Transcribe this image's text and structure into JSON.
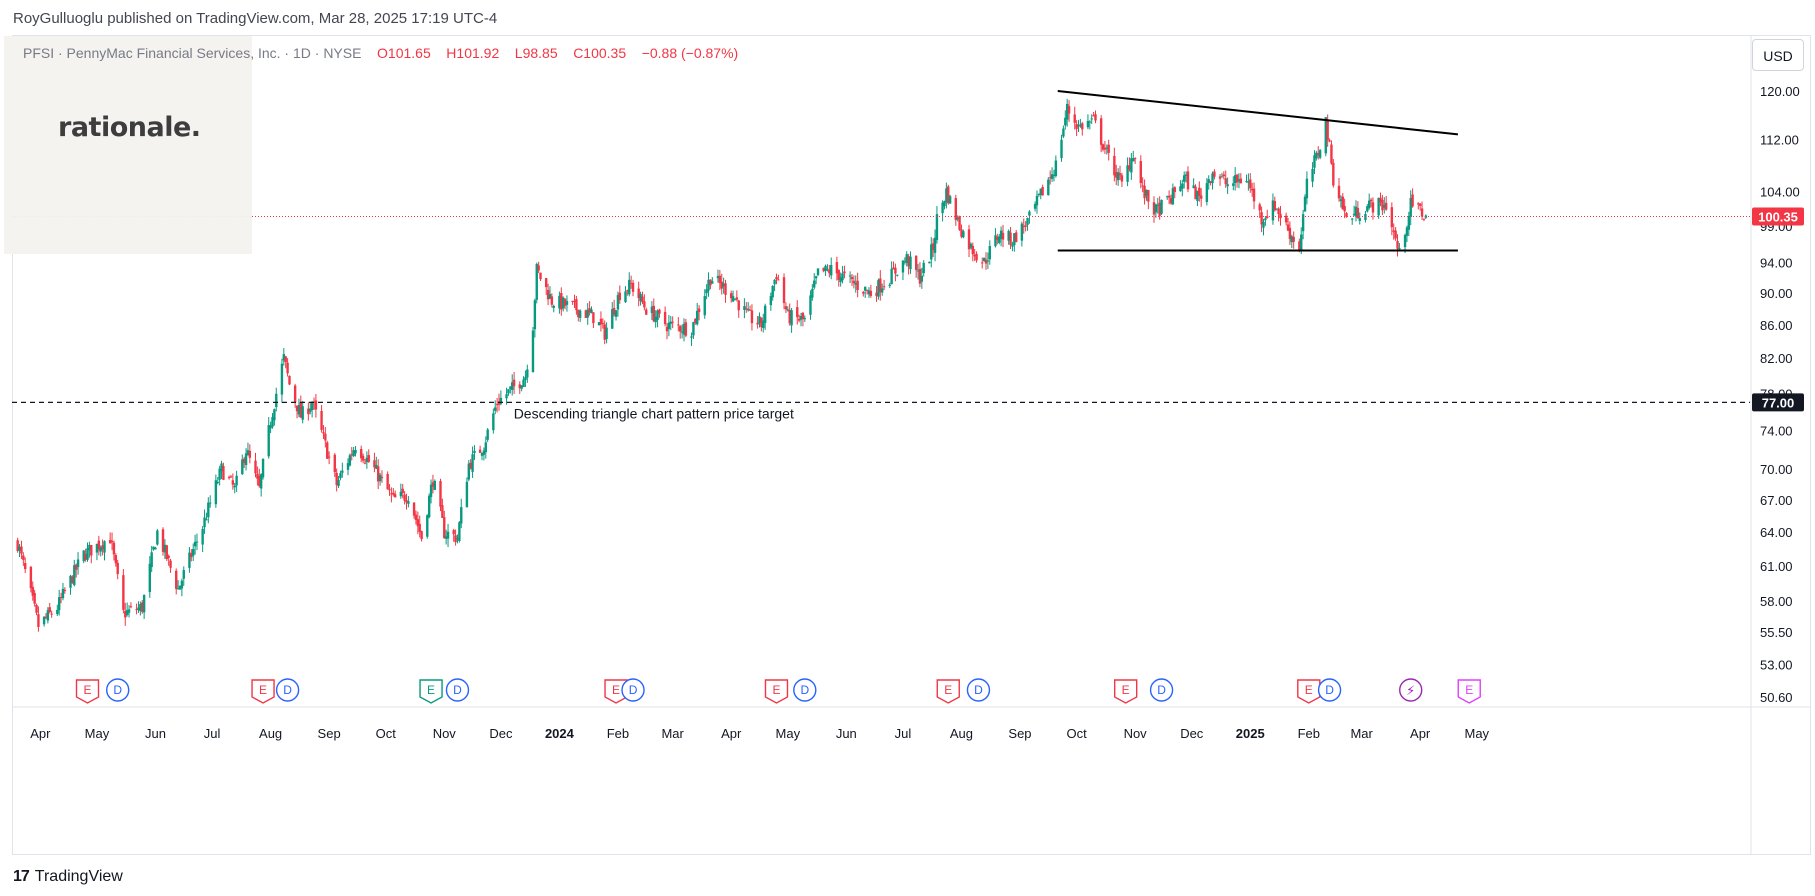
{
  "header": {
    "published": "RoyGulluoglu published on TradingView.com, Mar 28, 2025 17:19 UTC-4"
  },
  "legend": {
    "symbol": "PFSI · PennyMac Financial Services, Inc. · 1D · NYSE",
    "open": "O101.65",
    "high": "H101.92",
    "low": "L98.85",
    "close": "C100.35",
    "change": "−0.88 (−0.87%)"
  },
  "logo": {
    "text": "rationale."
  },
  "currency": "USD",
  "footer": {
    "brand": "TradingView"
  },
  "colors": {
    "up": "#089981",
    "down": "#f23645",
    "earnings": "#f23645",
    "dividend": "#2962ff",
    "split_flash": "#9c27b0"
  },
  "chart_data": {
    "type": "candlestick",
    "y_axis": {
      "ticks": [
        "120.00",
        "112.00",
        "104.00",
        "99.00",
        "94.00",
        "90.00",
        "86.00",
        "82.00",
        "78.00",
        "74.00",
        "70.00",
        "67.00",
        "64.00",
        "61.00",
        "58.00",
        "55.50",
        "53.00",
        "50.60"
      ],
      "tick_values": [
        120,
        112,
        104,
        99,
        94,
        90,
        86,
        82,
        78,
        74,
        70,
        67,
        64,
        61,
        58,
        55.5,
        53,
        50.6
      ],
      "scale": "log",
      "last_price_label": "100.35",
      "target_label": "77.00"
    },
    "x_axis": {
      "labels": [
        "Apr",
        "May",
        "Jun",
        "Jul",
        "Aug",
        "Sep",
        "Oct",
        "Nov",
        "Dec",
        "2024",
        "Feb",
        "Mar",
        "Apr",
        "May",
        "Jun",
        "Jul",
        "Aug",
        "Sep",
        "Oct",
        "Nov",
        "Dec",
        "2025",
        "Feb",
        "Mar",
        "Apr",
        "May"
      ],
      "bold": [
        "2024",
        "2025"
      ]
    },
    "price_path": [
      [
        "2023-03-20",
        63
      ],
      [
        "2023-03-31",
        56
      ],
      [
        "2023-04-10",
        57.5
      ],
      [
        "2023-04-24",
        62
      ],
      [
        "2023-05-08",
        63.5
      ],
      [
        "2023-05-15",
        57
      ],
      [
        "2023-05-25",
        57.5
      ],
      [
        "2023-06-02",
        64
      ],
      [
        "2023-06-13",
        59
      ],
      [
        "2023-06-26",
        64.5
      ],
      [
        "2023-07-06",
        70
      ],
      [
        "2023-07-13",
        68
      ],
      [
        "2023-07-19",
        72
      ],
      [
        "2023-07-26",
        68
      ],
      [
        "2023-08-01",
        75
      ],
      [
        "2023-08-08",
        82
      ],
      [
        "2023-08-11",
        79
      ],
      [
        "2023-08-17",
        75.5
      ],
      [
        "2023-08-23",
        77
      ],
      [
        "2023-09-05",
        68.5
      ],
      [
        "2023-09-15",
        72.5
      ],
      [
        "2023-09-25",
        70
      ],
      [
        "2023-10-05",
        67
      ],
      [
        "2023-10-13",
        67.5
      ],
      [
        "2023-10-20",
        63.5
      ],
      [
        "2023-10-26",
        69
      ],
      [
        "2023-11-01",
        64
      ],
      [
        "2023-11-08",
        63.5
      ],
      [
        "2023-11-14",
        70.5
      ],
      [
        "2023-11-22",
        72.5
      ],
      [
        "2023-11-29",
        77
      ],
      [
        "2023-12-07",
        78.5
      ],
      [
        "2023-12-14",
        80
      ],
      [
        "2023-12-18",
        86
      ],
      [
        "2023-12-20",
        93
      ],
      [
        "2023-12-28",
        89
      ],
      [
        "2024-01-10",
        88
      ],
      [
        "2024-01-19",
        87
      ],
      [
        "2024-01-25",
        85
      ],
      [
        "2024-02-02",
        90
      ],
      [
        "2024-02-08",
        91
      ],
      [
        "2024-02-16",
        88
      ],
      [
        "2024-02-27",
        86
      ],
      [
        "2024-03-11",
        85.5
      ],
      [
        "2024-03-21",
        92
      ],
      [
        "2024-04-01",
        90
      ],
      [
        "2024-04-10",
        87
      ],
      [
        "2024-04-17",
        86
      ],
      [
        "2024-04-25",
        92.5
      ],
      [
        "2024-05-01",
        87
      ],
      [
        "2024-05-10",
        86.5
      ],
      [
        "2024-05-17",
        92.5
      ],
      [
        "2024-05-24",
        93
      ],
      [
        "2024-06-03",
        91.5
      ],
      [
        "2024-06-14",
        90
      ],
      [
        "2024-06-24",
        92
      ],
      [
        "2024-07-03",
        94.5
      ],
      [
        "2024-07-10",
        92
      ],
      [
        "2024-07-17",
        96
      ],
      [
        "2024-07-19",
        100
      ],
      [
        "2024-07-24",
        104
      ],
      [
        "2024-07-31",
        99
      ],
      [
        "2024-08-06",
        96
      ],
      [
        "2024-08-13",
        94
      ],
      [
        "2024-08-21",
        98
      ],
      [
        "2024-08-28",
        97
      ],
      [
        "2024-09-06",
        100
      ],
      [
        "2024-09-13",
        104
      ],
      [
        "2024-09-20",
        108
      ],
      [
        "2024-09-26",
        117
      ],
      [
        "2024-10-02",
        114
      ],
      [
        "2024-10-10",
        115
      ],
      [
        "2024-10-18",
        109
      ],
      [
        "2024-10-25",
        105
      ],
      [
        "2024-10-31",
        110
      ],
      [
        "2024-11-05",
        104
      ],
      [
        "2024-11-12",
        101
      ],
      [
        "2024-11-20",
        103
      ],
      [
        "2024-11-27",
        106
      ],
      [
        "2024-12-05",
        103
      ],
      [
        "2024-12-12",
        107
      ],
      [
        "2024-12-20",
        105
      ],
      [
        "2024-12-30",
        106
      ],
      [
        "2025-01-07",
        100
      ],
      [
        "2025-01-14",
        102
      ],
      [
        "2025-01-22",
        98
      ],
      [
        "2025-01-27",
        96
      ],
      [
        "2025-01-31",
        105
      ],
      [
        "2025-02-06",
        110
      ],
      [
        "2025-02-10",
        115
      ],
      [
        "2025-02-14",
        106
      ],
      [
        "2025-02-21",
        100
      ],
      [
        "2025-02-27",
        101
      ],
      [
        "2025-03-06",
        102
      ],
      [
        "2025-03-14",
        102
      ],
      [
        "2025-03-19",
        97
      ],
      [
        "2025-03-21",
        95
      ],
      [
        "2025-03-27",
        102
      ],
      [
        "2025-03-31",
        101.5
      ],
      [
        "2025-04-04",
        100.35
      ]
    ],
    "trendlines": [
      {
        "from": [
          "2024-09-21",
          120
        ],
        "to": [
          "2025-04-21",
          112.8
        ]
      },
      {
        "from": [
          "2024-09-21",
          95.6
        ],
        "to": [
          "2025-04-21",
          95.6
        ]
      }
    ],
    "target_line": {
      "price": 77,
      "label": "Descending triangle chart pattern price target"
    },
    "events": [
      {
        "date": "2023-04-26",
        "type": "E"
      },
      {
        "date": "2023-05-12",
        "type": "D"
      },
      {
        "date": "2023-07-28",
        "type": "E"
      },
      {
        "date": "2023-08-10",
        "type": "D"
      },
      {
        "date": "2023-10-25",
        "type": "E",
        "style": "green"
      },
      {
        "date": "2023-11-08",
        "type": "D"
      },
      {
        "date": "2024-01-31",
        "type": "E"
      },
      {
        "date": "2024-02-09",
        "type": "D"
      },
      {
        "date": "2024-04-25",
        "type": "E"
      },
      {
        "date": "2024-05-10",
        "type": "D"
      },
      {
        "date": "2024-07-25",
        "type": "E"
      },
      {
        "date": "2024-08-10",
        "type": "D"
      },
      {
        "date": "2024-10-27",
        "type": "E"
      },
      {
        "date": "2024-11-15",
        "type": "D"
      },
      {
        "date": "2025-02-01",
        "type": "E"
      },
      {
        "date": "2025-02-12",
        "type": "D"
      },
      {
        "date": "2025-03-27",
        "type": "S"
      },
      {
        "date": "2025-04-27",
        "type": "E",
        "style": "purple"
      }
    ]
  }
}
